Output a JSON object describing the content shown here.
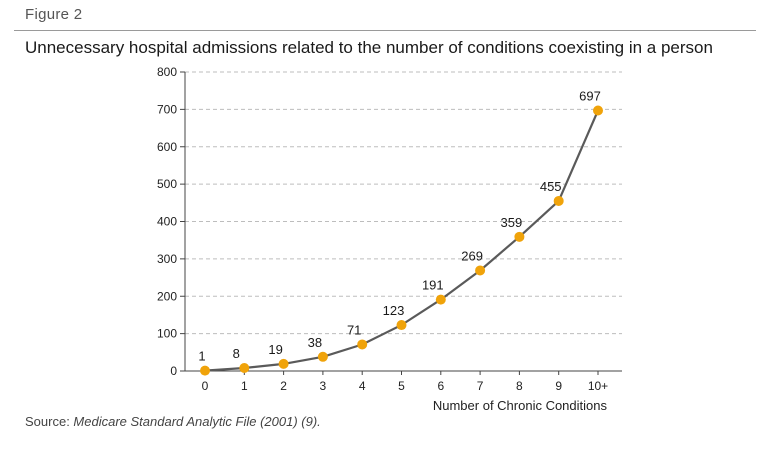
{
  "figure_label": "Figure 2",
  "source": {
    "prefix": "Source: ",
    "work": "Medicare Standard Analytic File (2001) (9)."
  },
  "chart_data": {
    "type": "line",
    "title": "Unnecessary hospital admissions related to the number of conditions coexisting in a person",
    "xlabel": "Number of Chronic Conditions",
    "ylabel": "",
    "categories": [
      "0",
      "1",
      "2",
      "3",
      "4",
      "5",
      "6",
      "7",
      "8",
      "9",
      "10+"
    ],
    "series": [
      {
        "values": [
          1,
          8,
          19,
          38,
          71,
          123,
          191,
          269,
          359,
          455,
          697
        ]
      }
    ],
    "data_labels": [
      "1",
      "8",
      "19",
      "38",
      "71",
      "123",
      "191",
      "269",
      "359",
      "455",
      "697"
    ],
    "ylim": [
      0,
      800
    ],
    "yticks": [
      0,
      100,
      200,
      300,
      400,
      500,
      600,
      700,
      800
    ],
    "grid": true,
    "legend": "none",
    "colors": {
      "line": "#5a5a5a",
      "marker": "#f0a30a",
      "grid": "#bdbdbd",
      "axis": "#444444"
    }
  }
}
